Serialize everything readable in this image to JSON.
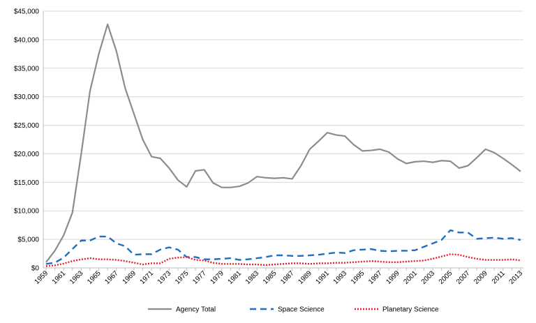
{
  "chart_data": {
    "type": "line",
    "title": "",
    "xlabel": "",
    "ylabel": "",
    "ylim": [
      0,
      45000
    ],
    "y_ticks": [
      0,
      5000,
      10000,
      15000,
      20000,
      25000,
      30000,
      35000,
      40000,
      45000
    ],
    "y_tick_labels": [
      "$0",
      "$5,000",
      "$10,000",
      "$15,000",
      "$20,000",
      "$25,000",
      "$30,000",
      "$35,000",
      "$40,000",
      "$45,000"
    ],
    "x": [
      1959,
      1960,
      1961,
      1962,
      1963,
      1964,
      1965,
      1966,
      1967,
      1968,
      1969,
      1970,
      1971,
      1972,
      1973,
      1974,
      1975,
      1976,
      1977,
      1978,
      1979,
      1980,
      1981,
      1982,
      1983,
      1984,
      1985,
      1986,
      1987,
      1988,
      1989,
      1990,
      1991,
      1992,
      1993,
      1994,
      1995,
      1996,
      1997,
      1998,
      1999,
      2000,
      2001,
      2002,
      2003,
      2004,
      2005,
      2006,
      2007,
      2008,
      2009,
      2010,
      2011,
      2012,
      2013
    ],
    "x_tick_labels": [
      "1959",
      "1961",
      "1963",
      "1965",
      "1967",
      "1969",
      "1971",
      "1973",
      "1975",
      "1977",
      "1979",
      "1981",
      "1983",
      "1985",
      "1987",
      "1989",
      "1991",
      "1993",
      "1995",
      "1997",
      "1999",
      "2001",
      "2003",
      "2005",
      "2007",
      "2009",
      "2011",
      "2013"
    ],
    "grid": "horizontal",
    "legend_position": "bottom",
    "series": [
      {
        "name": "Agency Total",
        "color": "#8c8c8c",
        "style": "solid",
        "values": [
          1000,
          3000,
          5700,
          9700,
          20000,
          31000,
          37500,
          42700,
          38000,
          31500,
          27000,
          22500,
          19500,
          19200,
          17500,
          15400,
          14200,
          17000,
          17200,
          14900,
          14100,
          14100,
          14300,
          14900,
          16000,
          15800,
          15700,
          15800,
          15600,
          17900,
          20800,
          22200,
          23700,
          23300,
          23100,
          21600,
          20500,
          20600,
          20800,
          20300,
          19100,
          18300,
          18600,
          18700,
          18500,
          18800,
          18700,
          17500,
          17900,
          19300,
          20800,
          20200,
          19200,
          18100,
          16900
        ]
      },
      {
        "name": "Space Science",
        "color": "#1f6fc0",
        "style": "dashed",
        "values": [
          700,
          900,
          1800,
          3300,
          4800,
          4800,
          5500,
          5500,
          4300,
          3800,
          2300,
          2400,
          2400,
          3200,
          3600,
          3200,
          1900,
          1900,
          1500,
          1500,
          1600,
          1700,
          1400,
          1500,
          1700,
          1900,
          2200,
          2200,
          2100,
          2100,
          2200,
          2300,
          2500,
          2700,
          2600,
          3100,
          3200,
          3300,
          3000,
          2900,
          3000,
          3000,
          3100,
          3700,
          4300,
          4900,
          6600,
          6200,
          6200,
          5100,
          5200,
          5300,
          5100,
          5200,
          4900
        ]
      },
      {
        "name": "Planetary Science",
        "color": "#e8202a",
        "style": "dotted",
        "values": [
          300,
          450,
          750,
          1200,
          1500,
          1700,
          1500,
          1500,
          1400,
          1200,
          900,
          600,
          800,
          800,
          1600,
          1800,
          1900,
          1400,
          1300,
          900,
          700,
          700,
          700,
          600,
          600,
          500,
          600,
          700,
          800,
          800,
          700,
          800,
          800,
          900,
          900,
          1000,
          1100,
          1200,
          1100,
          1000,
          1000,
          1100,
          1200,
          1300,
          1600,
          2000,
          2400,
          2300,
          1900,
          1600,
          1400,
          1400,
          1400,
          1500,
          1300
        ]
      }
    ]
  }
}
